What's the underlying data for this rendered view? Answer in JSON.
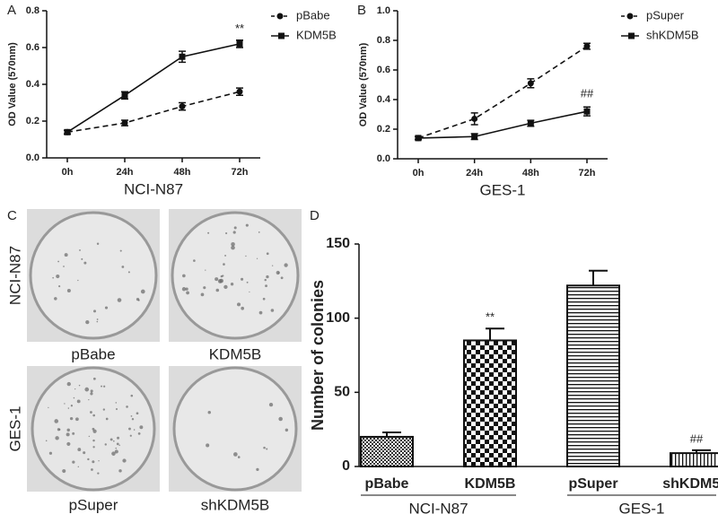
{
  "chart_data": [
    {
      "type": "line",
      "panel": "A",
      "xlabel": "NCI-N87",
      "ylabel": "OD Value (570nm)",
      "categories": [
        "0h",
        "24h",
        "48h",
        "72h"
      ],
      "series": [
        {
          "name": "pBabe",
          "color": "#111111",
          "dash": true,
          "marker": "circle",
          "values": [
            0.14,
            0.19,
            0.28,
            0.36
          ],
          "errors": [
            0.01,
            0.015,
            0.02,
            0.02
          ]
        },
        {
          "name": "KDM5B",
          "color": "#111111",
          "dash": false,
          "marker": "square",
          "values": [
            0.14,
            0.34,
            0.55,
            0.62
          ],
          "errors": [
            0.01,
            0.02,
            0.03,
            0.02
          ]
        }
      ],
      "annotations": [
        "**"
      ],
      "ylim": [
        0,
        0.8
      ],
      "yticks": [
        {
          "value": 0,
          "label": "0.0"
        },
        0.2,
        0.4,
        0.6,
        0.8
      ],
      "legend": "right"
    },
    {
      "type": "line",
      "panel": "B",
      "xlabel": "GES-1",
      "ylabel": "OD Value (570nm)",
      "categories": [
        "0h",
        "24h",
        "48h",
        "72h"
      ],
      "series": [
        {
          "name": "pSuper",
          "color": "#111111",
          "dash": true,
          "marker": "circle",
          "values": [
            0.14,
            0.27,
            0.51,
            0.76
          ],
          "errors": [
            0.01,
            0.04,
            0.03,
            0.02
          ]
        },
        {
          "name": "shKDM5B",
          "color": "#111111",
          "dash": false,
          "marker": "square",
          "values": [
            0.14,
            0.15,
            0.24,
            0.32
          ],
          "errors": [
            0.01,
            0.02,
            0.02,
            0.03
          ]
        }
      ],
      "annotations": [
        "##"
      ],
      "ylim": [
        0,
        1.0
      ],
      "yticks": [
        {
          "value": 0,
          "label": "0.0"
        },
        0.2,
        0.4,
        0.6,
        0.8,
        {
          "value": 1,
          "label": "1.0"
        }
      ],
      "legend": "right"
    },
    {
      "type": "bar",
      "panel": "D",
      "ylabel": "Number of colonies",
      "categories": [
        "pBabe",
        "KDM5B",
        "pSuper",
        "shKDM5B"
      ],
      "values": [
        20,
        85,
        122,
        9
      ],
      "errors": [
        3,
        8,
        10,
        2
      ],
      "patterns": [
        "dots",
        "checker",
        "hlines",
        "vlines"
      ],
      "groups": [
        "NCI-N87",
        "GES-1"
      ],
      "annotations": [
        "**",
        "##"
      ],
      "ylim": [
        0,
        150
      ],
      "yticks": [
        0,
        50,
        100,
        150
      ]
    }
  ],
  "images": {
    "panel": "C",
    "rows": [
      "NCI-N87",
      "GES-1"
    ],
    "labels": [
      "pBabe",
      "KDM5B",
      "pSuper",
      "shKDM5B"
    ]
  }
}
